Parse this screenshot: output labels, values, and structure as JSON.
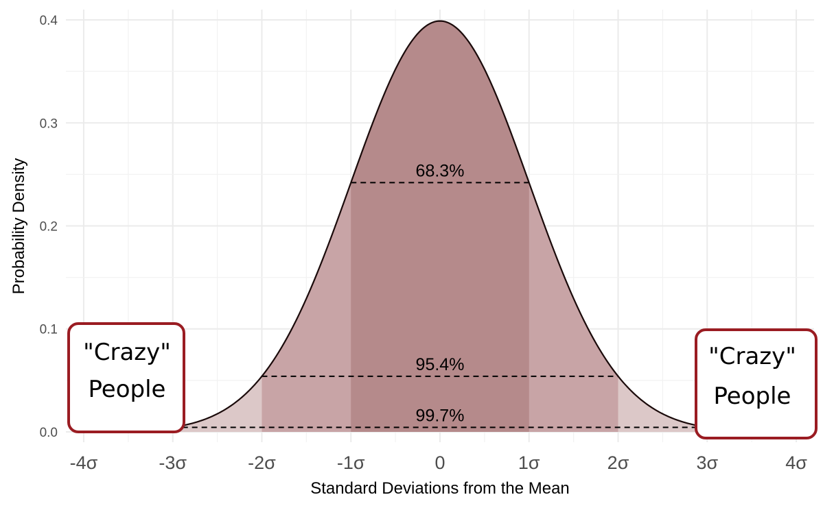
{
  "chart_data": {
    "type": "area",
    "title": "",
    "xlabel": "Standard Deviations from the Mean",
    "ylabel": "Probability Density",
    "xlim": [
      -4.2,
      4.2
    ],
    "ylim": [
      -0.01,
      0.41
    ],
    "grid": true,
    "x_ticks": [
      {
        "value": -4,
        "label": "-4σ"
      },
      {
        "value": -3,
        "label": "-3σ"
      },
      {
        "value": -2,
        "label": "-2σ"
      },
      {
        "value": -1,
        "label": "-1σ"
      },
      {
        "value": 0,
        "label": "0"
      },
      {
        "value": 1,
        "label": "1σ"
      },
      {
        "value": 2,
        "label": "2σ"
      },
      {
        "value": 3,
        "label": "3σ"
      },
      {
        "value": 4,
        "label": "4σ"
      }
    ],
    "y_ticks": [
      {
        "value": 0.0,
        "label": "0.0"
      },
      {
        "value": 0.1,
        "label": "0.1"
      },
      {
        "value": 0.2,
        "label": "0.2"
      },
      {
        "value": 0.3,
        "label": "0.3"
      },
      {
        "value": 0.4,
        "label": "0.4"
      }
    ],
    "curve": {
      "distribution": "normal",
      "mean": 0,
      "sd": 1,
      "x_range": [
        -4,
        4
      ],
      "line_color": "#1a0a0a"
    },
    "bands": [
      {
        "from": -3,
        "to": 3,
        "color": "#dcc8c8"
      },
      {
        "from": -2,
        "to": 2,
        "color": "#c8a4a6"
      },
      {
        "from": -1,
        "to": 1,
        "color": "#b58a8b"
      }
    ],
    "annotations": [
      {
        "label": "68.3%",
        "from": -1,
        "to": 1,
        "y": 0.242
      },
      {
        "label": "95.4%",
        "from": -2,
        "to": 2,
        "y": 0.054
      },
      {
        "label": "99.7%",
        "from": -3,
        "to": 3,
        "y": 0.0044
      }
    ],
    "callouts": [
      {
        "side": "left",
        "lines": [
          "\"Crazy\"",
          "People"
        ],
        "border_color": "#9a1c22"
      },
      {
        "side": "right",
        "lines": [
          "\"Crazy\"",
          "People"
        ],
        "border_color": "#9a1c22"
      }
    ]
  }
}
